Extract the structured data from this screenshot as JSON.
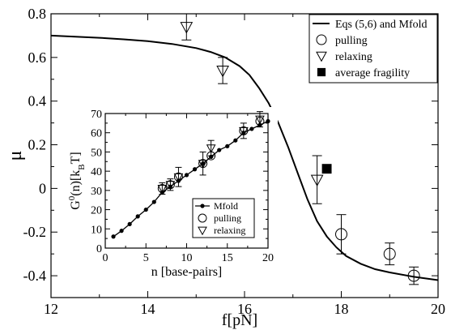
{
  "chart_data": [
    {
      "type": "scatter",
      "xlabel": "f[pN]",
      "ylabel": "μ",
      "xlim": [
        12,
        20
      ],
      "ylim": [
        -0.5,
        0.8
      ],
      "x_ticks": [
        "12",
        "14",
        "16",
        "18",
        "20"
      ],
      "y_ticks": [
        "0.8",
        "0.6",
        "0.4",
        "0.2",
        "0",
        "-0.2",
        "-0.4"
      ],
      "legend_position": "top-right",
      "series": [
        {
          "name": "Eqs (5,6) and Mfold",
          "kind": "line",
          "points": [
            [
              12,
              0.7
            ],
            [
              12.5,
              0.695
            ],
            [
              13,
              0.69
            ],
            [
              13.5,
              0.683
            ],
            [
              14,
              0.675
            ],
            [
              14.5,
              0.662
            ],
            [
              15,
              0.643
            ],
            [
              15.3,
              0.625
            ],
            [
              15.6,
              0.6
            ],
            [
              15.9,
              0.56
            ],
            [
              16.1,
              0.52
            ],
            [
              16.3,
              0.46
            ],
            [
              16.5,
              0.39
            ],
            [
              16.7,
              0.3
            ],
            [
              16.9,
              0.19
            ],
            [
              17.1,
              0.07
            ],
            [
              17.3,
              -0.05
            ],
            [
              17.5,
              -0.15
            ],
            [
              17.7,
              -0.22
            ],
            [
              17.9,
              -0.27
            ],
            [
              18.1,
              -0.31
            ],
            [
              18.4,
              -0.345
            ],
            [
              18.7,
              -0.37
            ],
            [
              19,
              -0.385
            ],
            [
              19.5,
              -0.405
            ],
            [
              20,
              -0.42
            ]
          ]
        },
        {
          "name": "pulling",
          "kind": "circle",
          "points": [
            [
              18.0,
              -0.21,
              0.09
            ],
            [
              19.0,
              -0.3,
              0.05
            ],
            [
              19.5,
              -0.4,
              0.04
            ]
          ]
        },
        {
          "name": "relaxing",
          "kind": "triangle-down",
          "points": [
            [
              14.8,
              0.74,
              0.06
            ],
            [
              15.55,
              0.54,
              0.06
            ],
            [
              16.5,
              0.22,
              0.06
            ],
            [
              17.5,
              0.04,
              0.11
            ]
          ]
        },
        {
          "name": "average fragility",
          "kind": "square-filled",
          "points": [
            [
              17.7,
              0.09,
              0
            ]
          ]
        }
      ]
    },
    {
      "type": "scatter",
      "xlabel": "n [base-pairs]",
      "ylabel": "G0(n)[kBT]",
      "xlim": [
        0,
        20
      ],
      "ylim": [
        0,
        70
      ],
      "x_ticks": [
        "0",
        "5",
        "10",
        "15",
        "20"
      ],
      "y_ticks": [
        "0",
        "10",
        "20",
        "30",
        "40",
        "50",
        "60",
        "70"
      ],
      "legend_position": "bottom-right",
      "series": [
        {
          "name": "Mfold",
          "kind": "line-dot",
          "points": [
            [
              1,
              6
            ],
            [
              2,
              9
            ],
            [
              3,
              12.5
            ],
            [
              4,
              16.5
            ],
            [
              5,
              20
            ],
            [
              6,
              24
            ],
            [
              7,
              29
            ],
            [
              8,
              32
            ],
            [
              9,
              35
            ],
            [
              10,
              38
            ],
            [
              11,
              41
            ],
            [
              12,
              44
            ],
            [
              13,
              47.5
            ],
            [
              14,
              51
            ],
            [
              15,
              53
            ],
            [
              16,
              56
            ],
            [
              17,
              60
            ],
            [
              18,
              62
            ],
            [
              19,
              64
            ],
            [
              20,
              66
            ]
          ]
        },
        {
          "name": "pulling",
          "kind": "circle",
          "points": [
            [
              7,
              31,
              0
            ],
            [
              8,
              33,
              0
            ],
            [
              9,
              37,
              0
            ],
            [
              12,
              44,
              0
            ],
            [
              13,
              48,
              0
            ],
            [
              17,
              61,
              0
            ],
            [
              19,
              66,
              0
            ]
          ]
        },
        {
          "name": "relaxing",
          "kind": "triangle-down",
          "points": [
            [
              7,
              31,
              3
            ],
            [
              8,
              33,
              3
            ],
            [
              9,
              37,
              5
            ],
            [
              12,
              44,
              6
            ],
            [
              13,
              52,
              4
            ],
            [
              17,
              61,
              4
            ],
            [
              19,
              67,
              4
            ]
          ]
        }
      ]
    }
  ]
}
